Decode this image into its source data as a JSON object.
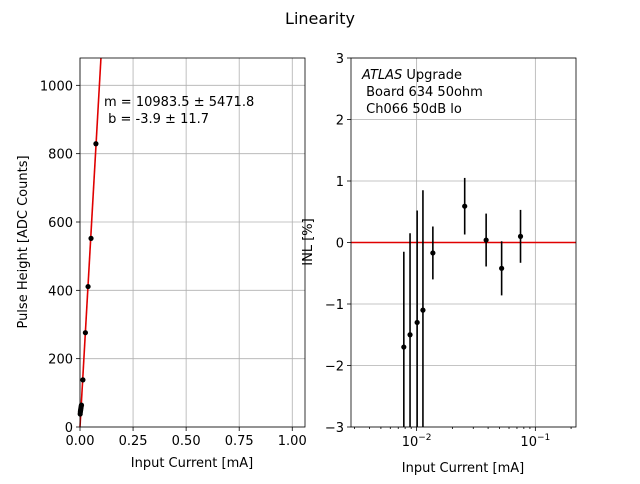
{
  "figure": {
    "title": "Linearity"
  },
  "chart_data": [
    {
      "type": "scatter",
      "title": "",
      "xlabel": "Input Current [mA]",
      "ylabel": "Pulse Height [ADC Counts]",
      "xlim": [
        0,
        1.06
      ],
      "ylim": [
        0,
        1080
      ],
      "xticks": [
        0.0,
        0.25,
        0.5,
        0.75,
        1.0
      ],
      "xtick_labels": [
        "0.00",
        "0.25",
        "0.50",
        "0.75",
        "1.00"
      ],
      "yticks": [
        0,
        200,
        400,
        600,
        800,
        1000
      ],
      "ytick_labels": [
        "0",
        "200",
        "400",
        "600",
        "800",
        "1000"
      ],
      "grid": true,
      "series": [
        {
          "kind": "points",
          "color": "#000000",
          "x": [
            0.0009,
            0.0017,
            0.0026,
            0.0035,
            0.0045,
            0.0056,
            0.0068,
            0.0137,
            0.0254,
            0.038,
            0.052,
            0.075
          ],
          "y": [
            38,
            44,
            48,
            52,
            56,
            60,
            64,
            138,
            276,
            411,
            552,
            829
          ]
        },
        {
          "kind": "fit-line",
          "color": "#e00000",
          "slope": 10983.5,
          "intercept": -3.9,
          "x_range": [
            0,
            0.1
          ]
        }
      ],
      "annotation": {
        "line1": "m = 10983.5 ± 5471.8",
        "line2": " b = -3.9 ± 11.7"
      }
    },
    {
      "type": "scatter",
      "title": "",
      "xscale": "log",
      "xlabel": "Input Current [mA]",
      "ylabel": "INL [%]",
      "xlim": [
        0.0028,
        0.22
      ],
      "ylim": [
        -3,
        3
      ],
      "yticks": [
        -3,
        -2,
        -1,
        0,
        1,
        2,
        3
      ],
      "ytick_labels": [
        "−3",
        "−2",
        "−1",
        "0",
        "1",
        "2",
        "3"
      ],
      "xtick_major": [
        0.01,
        0.1
      ],
      "xtick_major_labels": [
        {
          "base": "10",
          "exp": "−2"
        },
        {
          "base": "10",
          "exp": "−1"
        }
      ],
      "grid": true,
      "reference_line": {
        "y": 0,
        "color": "#e00000"
      },
      "errorbar_points": [
        {
          "x": 0.0078,
          "y": -1.7,
          "err": 1.55
        },
        {
          "x": 0.0088,
          "y": -1.5,
          "err": 1.65
        },
        {
          "x": 0.0101,
          "y": -1.3,
          "err": 1.82
        },
        {
          "x": 0.0113,
          "y": -1.1,
          "err": 1.95
        },
        {
          "x": 0.0137,
          "y": -0.17,
          "err": 0.43
        },
        {
          "x": 0.0254,
          "y": 0.59,
          "err": 0.46
        },
        {
          "x": 0.0385,
          "y": 0.04,
          "err": 0.43
        },
        {
          "x": 0.052,
          "y": -0.42,
          "err": 0.44
        },
        {
          "x": 0.075,
          "y": 0.1,
          "err": 0.43
        }
      ],
      "annotation": {
        "line1_italic": "ATLAS",
        "line1_rest": " Upgrade",
        "line2": " Board 634 50ohm",
        "line3": " Ch066 50dB lo"
      }
    }
  ]
}
